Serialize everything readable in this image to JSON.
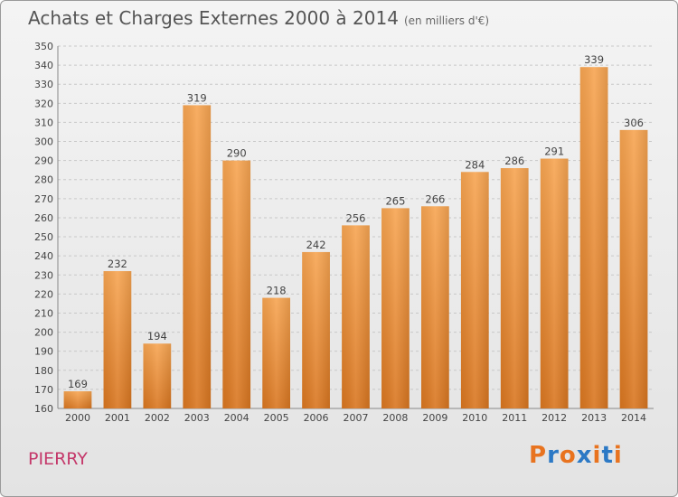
{
  "header": {
    "title": "Achats et Charges Externes 2000 à 2014",
    "unit": "(en milliers d'€)"
  },
  "commune": "PIERRY",
  "logo": {
    "text": "Proxiti",
    "colors": [
      "#e8731f",
      "#2c79c5",
      "#e8731f",
      "#2c79c5",
      "#e8731f",
      "#2c79c5",
      "#e8731f"
    ]
  },
  "chart_data": {
    "type": "bar",
    "title": "Achats et Charges Externes 2000 à 2014",
    "xlabel": "",
    "ylabel": "",
    "categories": [
      "2000",
      "2001",
      "2002",
      "2003",
      "2004",
      "2005",
      "2006",
      "2007",
      "2008",
      "2009",
      "2010",
      "2011",
      "2012",
      "2013",
      "2014"
    ],
    "values": [
      169,
      232,
      194,
      319,
      290,
      218,
      242,
      256,
      265,
      266,
      284,
      286,
      291,
      339,
      306
    ],
    "ylim": [
      160,
      350
    ],
    "ytick_step": 10,
    "grid": "horizontal dashed",
    "bar_color_top": "#f7a552",
    "bar_color_bottom": "#d97620",
    "data_labels": true
  }
}
